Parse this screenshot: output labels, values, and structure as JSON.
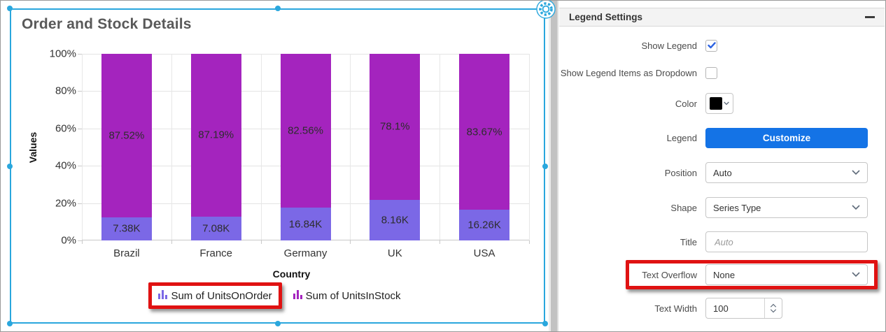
{
  "widget": {
    "title": "Order and Stock Details"
  },
  "chart_data": {
    "type": "bar",
    "stacked": true,
    "percent_axis": true,
    "title": "Order and Stock Details",
    "xlabel": "Country",
    "ylabel": "Values",
    "ylim": [
      0,
      100
    ],
    "yticks": [
      "0%",
      "20%",
      "40%",
      "60%",
      "80%",
      "100%"
    ],
    "grid": true,
    "legend_position": "bottom",
    "categories": [
      "Brazil",
      "France",
      "Germany",
      "UK",
      "USA"
    ],
    "series": [
      {
        "name": "Sum of UnitsOnOrder",
        "color": "#7b68e6",
        "percents": [
          12.48,
          12.81,
          17.44,
          21.9,
          16.33
        ],
        "labels": [
          "7.38K",
          "7.08K",
          "16.84K",
          "8.16K",
          "16.26K"
        ]
      },
      {
        "name": "Sum of UnitsInStock",
        "color": "#a424be",
        "percents": [
          87.52,
          87.19,
          82.56,
          78.1,
          83.67
        ],
        "labels": [
          "87.52%",
          "87.19%",
          "82.56%",
          "78.1%",
          "83.67%"
        ]
      }
    ]
  },
  "legend": {
    "items": [
      {
        "label": "Sum of UnitsOnOrder",
        "color": "#7b68e6",
        "highlighted": true
      },
      {
        "label": "Sum of UnitsInStock",
        "color": "#a424be",
        "highlighted": false
      }
    ]
  },
  "panel": {
    "header": "Legend Settings",
    "show_legend": {
      "label": "Show Legend",
      "checked": true
    },
    "show_dropdown": {
      "label": "Show Legend Items as Dropdown",
      "checked": false
    },
    "color": {
      "label": "Color",
      "value": "#000000"
    },
    "legend": {
      "label": "Legend",
      "button": "Customize"
    },
    "position": {
      "label": "Position",
      "value": "Auto"
    },
    "shape": {
      "label": "Shape",
      "value": "Series Type"
    },
    "title": {
      "label": "Title",
      "placeholder": "Auto"
    },
    "text_overflow": {
      "label": "Text Overflow",
      "value": "None",
      "highlighted": true
    },
    "text_width": {
      "label": "Text Width",
      "value": "100"
    }
  },
  "colors": {
    "selection": "#2aa7dd",
    "highlight_red": "#e01212",
    "accent_blue": "#1473e6",
    "check_blue": "#2d63e2"
  }
}
